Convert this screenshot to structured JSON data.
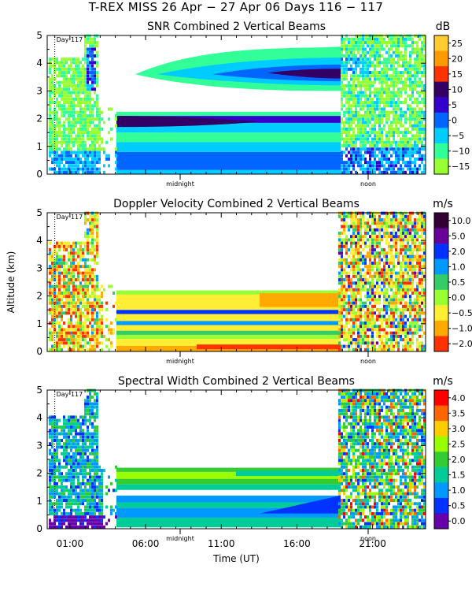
{
  "figure": {
    "title": "T-REX MISS   26 Apr − 27 Apr 06 Days 116 − 117",
    "x_axis_label": "Time (UT)",
    "y_axis_label": "Altitude (km)",
    "x_ticks": [
      "01:00",
      "06:00",
      "11:00",
      "16:00",
      "21:00"
    ],
    "day_marker": "Day 117",
    "midnight_label": "midnight",
    "noon_label": "noon"
  },
  "chart_data": [
    {
      "type": "heatmap",
      "id": "snr",
      "title": "SNR Combined 2 Vertical Beams",
      "units": "dB",
      "ylabel": "",
      "y_ticks": [
        0,
        1,
        2,
        3,
        4,
        5
      ],
      "ylim": [
        0,
        5
      ],
      "xlim_hours_ut": [
        -0.5,
        24.5
      ],
      "colorbar_labels": [
        "25",
        "20",
        "15",
        "10",
        "5",
        "0",
        "−5",
        "−10",
        "−15"
      ],
      "colorbar_colors": [
        "#ffcc33",
        "#ff9900",
        "#ff3300",
        "#330066",
        "#3300cc",
        "#0066ff",
        "#00ccff",
        "#33ff99",
        "#99ff33"
      ]
    },
    {
      "type": "heatmap",
      "id": "doppler",
      "title": "Doppler Velocity Combined 2 Vertical Beams",
      "units": "m/s",
      "ylabel": "Altitude (km)",
      "y_ticks": [
        0,
        1,
        2,
        3,
        4,
        5
      ],
      "ylim": [
        0,
        5
      ],
      "xlim_hours_ut": [
        -0.5,
        24.5
      ],
      "colorbar_labels": [
        "10.0",
        "5.0",
        "2.0",
        "1.0",
        "0.5",
        "0.0",
        "−0.5",
        "−1.0",
        "−2.0"
      ],
      "colorbar_colors": [
        "#330033",
        "#660099",
        "#0033ff",
        "#0099ff",
        "#33cc66",
        "#99ff33",
        "#ffee33",
        "#ffaa00",
        "#ff3300"
      ]
    },
    {
      "type": "heatmap",
      "id": "width",
      "title": "Spectral Width Combined 2 Vertical Beams",
      "units": "m/s",
      "ylabel": "",
      "y_ticks": [
        0,
        1,
        2,
        3,
        4,
        5
      ],
      "ylim": [
        0,
        5
      ],
      "xlim_hours_ut": [
        -0.5,
        24.5
      ],
      "colorbar_labels": [
        "4.0",
        "3.5",
        "3.0",
        "2.5",
        "2.0",
        "1.5",
        "1.0",
        "0.5",
        "0.0"
      ],
      "colorbar_colors": [
        "#ff0000",
        "#ff6600",
        "#ffcc00",
        "#99ff00",
        "#33cc33",
        "#00cc99",
        "#0099ff",
        "#0033ff",
        "#6600aa"
      ]
    }
  ]
}
